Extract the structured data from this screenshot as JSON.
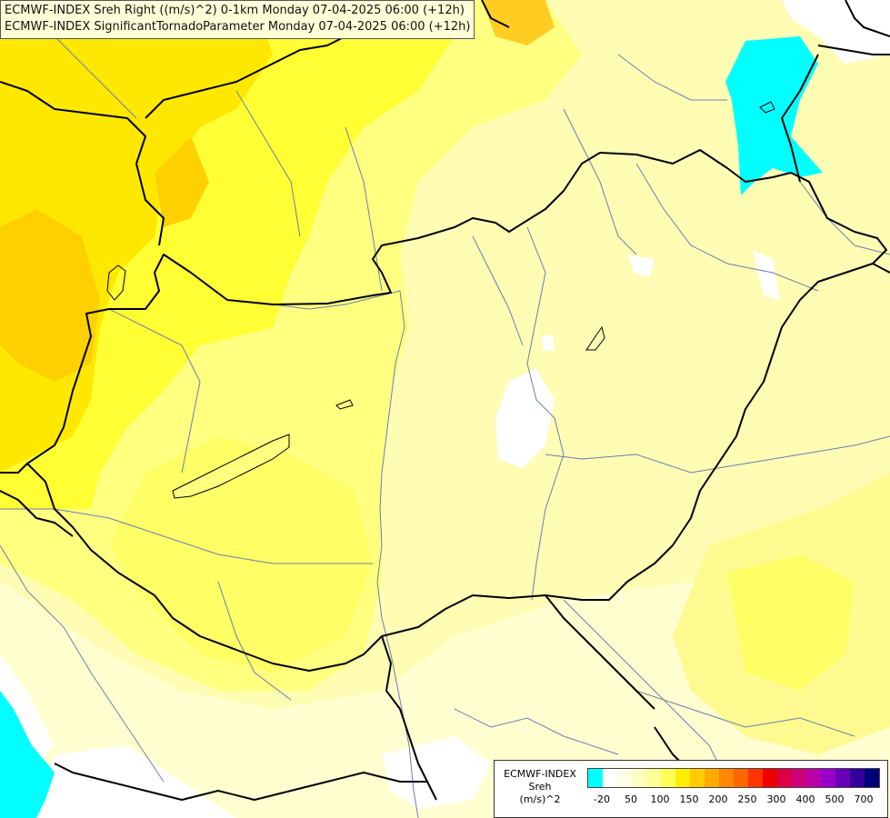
{
  "header": {
    "line1": "ECMWF-INDEX Sreh Right ((m/s)^2) 0-1km Monday 07-04-2025 06:00 (+12h)",
    "line2": "ECMWF-INDEX SignificantTornadoParameter Monday 07-04-2025 06:00 (+12h)"
  },
  "legend": {
    "title_line1": "ECMWF-INDEX",
    "title_line2": "Sreh",
    "title_line3": "(m/s)^2",
    "colors": [
      "#00ffff",
      "#ffffff",
      "#fefee6",
      "#fefec0",
      "#ffff99",
      "#ffff55",
      "#ffee00",
      "#ffcc00",
      "#ffaa00",
      "#ff8800",
      "#ff6600",
      "#ff3300",
      "#ee0000",
      "#dd0044",
      "#cc0077",
      "#bb00aa",
      "#9900cc",
      "#6600bb",
      "#330099",
      "#000077"
    ],
    "ticks": [
      "-20",
      "50",
      "100",
      "150",
      "200",
      "250",
      "300",
      "400",
      "500",
      "700"
    ]
  },
  "colors": {
    "lightest": "#ffffd0",
    "light": "#fffcb0",
    "medium": "#ffff80",
    "strong": "#ffff33",
    "deep": "#ffe800",
    "orange": "#ffd000",
    "cyan": "#00ffff",
    "border": "#000000",
    "river": "#6a7fb0"
  }
}
